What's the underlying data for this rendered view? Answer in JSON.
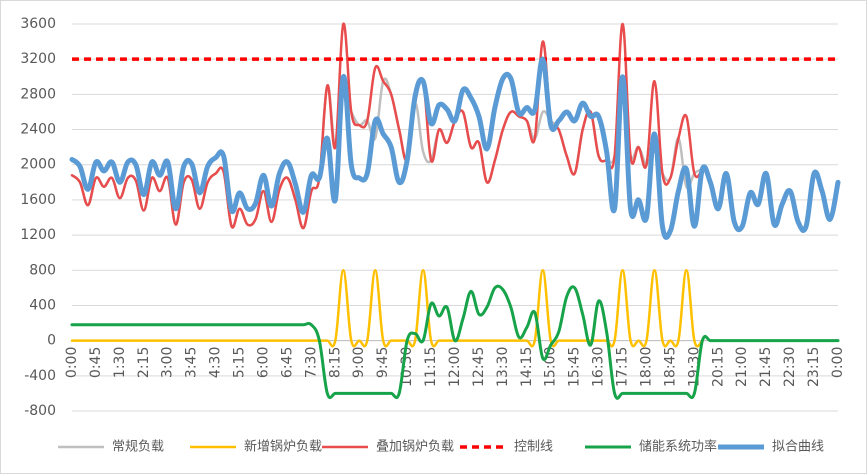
{
  "chart_data": {
    "type": "line",
    "categories": [
      "0:00",
      null,
      null,
      "0:45",
      null,
      null,
      "1:30",
      null,
      null,
      "2:15",
      null,
      null,
      "3:00",
      null,
      null,
      "3:45",
      null,
      null,
      "4:30",
      null,
      null,
      "5:15",
      null,
      null,
      "6:00",
      null,
      null,
      "6:45",
      null,
      null,
      "7:30",
      null,
      null,
      "8:15",
      null,
      null,
      "9:00",
      null,
      null,
      "9:45",
      null,
      null,
      "10:30",
      null,
      null,
      "11:15",
      null,
      null,
      "12:00",
      null,
      null,
      "12:45",
      null,
      null,
      "13:30",
      null,
      null,
      "14:15",
      null,
      null,
      "15:00",
      null,
      null,
      "15:45",
      null,
      null,
      "16:30",
      null,
      null,
      "17:15",
      null,
      null,
      "18:00",
      null,
      null,
      "18:45",
      null,
      null,
      "19:30",
      null,
      null,
      "20:15",
      null,
      null,
      "21:00",
      null,
      null,
      "21:45",
      null,
      null,
      "22:30",
      null,
      null,
      "23:15",
      null,
      null,
      "0:00"
    ],
    "ylim": [
      -800,
      3600
    ],
    "yticks": [
      -800,
      -400,
      0,
      400,
      800,
      1200,
      1600,
      2000,
      2400,
      2800,
      3200,
      3600
    ],
    "grid": true,
    "legend": "bottom",
    "series": [
      {
        "name": "常规负载",
        "color": "#bfbfbf",
        "values": [
          1880,
          1800,
          1540,
          1850,
          1750,
          1850,
          1620,
          1850,
          1820,
          1480,
          1850,
          1700,
          1850,
          1320,
          1800,
          1830,
          1500,
          1800,
          1900,
          1920,
          1300,
          1500,
          1320,
          1380,
          1700,
          1350,
          1720,
          1850,
          1600,
          1280,
          1700,
          1850,
          2900,
          2200,
          2800,
          2600,
          2450,
          2500,
          2300,
          2950,
          2800,
          2400,
          2050,
          2700,
          2150,
          2050,
          2400,
          2250,
          2500,
          2600,
          2200,
          2250,
          1800,
          2050,
          2400,
          2600,
          2550,
          2500,
          2300,
          2600,
          2500,
          2400,
          2100,
          1900,
          2400,
          2600,
          2100,
          2050,
          2100,
          2800,
          2100,
          2200,
          2000,
          2150,
          1900,
          1850,
          2300,
          1750,
          1900,
          1950,
          null,
          null,
          null,
          null,
          null,
          null,
          null,
          null,
          null,
          null,
          null,
          null,
          null,
          null,
          null,
          null,
          null
        ]
      },
      {
        "name": "新增锅炉负载",
        "color": "#ffc000",
        "values": [
          0,
          0,
          0,
          0,
          0,
          0,
          0,
          0,
          0,
          0,
          0,
          0,
          0,
          0,
          0,
          0,
          0,
          0,
          0,
          0,
          0,
          0,
          0,
          0,
          0,
          0,
          0,
          0,
          0,
          0,
          0,
          0,
          0,
          0,
          800,
          0,
          0,
          0,
          800,
          0,
          0,
          0,
          0,
          0,
          800,
          0,
          0,
          0,
          0,
          0,
          0,
          0,
          0,
          0,
          0,
          0,
          0,
          0,
          0,
          800,
          0,
          0,
          0,
          0,
          0,
          0,
          0,
          0,
          0,
          800,
          0,
          0,
          0,
          800,
          0,
          0,
          0,
          800,
          0,
          0,
          null,
          null,
          null,
          null,
          null,
          null,
          null,
          null,
          null,
          null,
          null,
          null,
          null,
          null,
          null,
          null,
          null
        ]
      },
      {
        "name": "叠加锅炉负载",
        "color": "#e84c4c",
        "values": [
          1880,
          1800,
          1540,
          1850,
          1750,
          1850,
          1620,
          1850,
          1820,
          1480,
          1850,
          1700,
          1850,
          1320,
          1800,
          1830,
          1500,
          1800,
          1900,
          1920,
          1300,
          1500,
          1320,
          1380,
          1700,
          1350,
          1720,
          1850,
          1600,
          1280,
          1700,
          1850,
          2900,
          2200,
          3600,
          2600,
          2450,
          2500,
          3100,
          2950,
          2800,
          2400,
          2050,
          2700,
          2950,
          2050,
          2400,
          2250,
          2500,
          2600,
          2200,
          2250,
          1800,
          2050,
          2400,
          2600,
          2550,
          2500,
          2300,
          3400,
          2500,
          2400,
          2100,
          1900,
          2400,
          2600,
          2100,
          2050,
          2100,
          3600,
          2100,
          2200,
          2000,
          2950,
          1900,
          1850,
          2300,
          2550,
          1900,
          1950,
          null,
          null,
          null,
          null,
          null,
          null,
          null,
          null,
          null,
          null,
          null,
          null,
          null,
          null,
          null,
          null,
          null
        ]
      },
      {
        "name": "控制线",
        "color": "#ff0000",
        "style": "dashed",
        "values": [
          3200,
          3200,
          3200,
          3200,
          3200,
          3200,
          3200,
          3200,
          3200,
          3200,
          3200,
          3200,
          3200,
          3200,
          3200,
          3200,
          3200,
          3200,
          3200,
          3200,
          3200,
          3200,
          3200,
          3200,
          3200,
          3200,
          3200,
          3200,
          3200,
          3200,
          3200,
          3200,
          3200,
          3200,
          3200,
          3200,
          3200,
          3200,
          3200,
          3200,
          3200,
          3200,
          3200,
          3200,
          3200,
          3200,
          3200,
          3200,
          3200,
          3200,
          3200,
          3200,
          3200,
          3200,
          3200,
          3200,
          3200,
          3200,
          3200,
          3200,
          3200,
          3200,
          3200,
          3200,
          3200,
          3200,
          3200,
          3200,
          3200,
          3200,
          3200,
          3200,
          3200,
          3200,
          3200,
          3200,
          3200,
          3200,
          3200,
          3200,
          3200,
          3200,
          3200,
          3200,
          3200,
          3200,
          3200,
          3200,
          3200,
          3200,
          3200,
          3200,
          3200,
          3200,
          3200,
          3200,
          3200
        ]
      },
      {
        "name": "储能系统功率",
        "color": "#16a34a",
        "values": [
          180,
          180,
          180,
          180,
          180,
          180,
          180,
          180,
          180,
          180,
          180,
          180,
          180,
          180,
          180,
          180,
          180,
          180,
          180,
          180,
          180,
          180,
          180,
          180,
          180,
          180,
          180,
          180,
          180,
          180,
          180,
          0,
          -600,
          -600,
          -600,
          -600,
          -600,
          -600,
          -600,
          -600,
          -600,
          -600,
          0,
          80,
          0,
          420,
          280,
          380,
          0,
          250,
          560,
          300,
          380,
          600,
          580,
          380,
          40,
          150,
          320,
          -200,
          -50,
          100,
          500,
          600,
          300,
          -50,
          450,
          100,
          -600,
          -600,
          -600,
          -600,
          -600,
          -600,
          -600,
          -600,
          -600,
          -600,
          -600,
          0,
          0,
          0,
          0,
          0,
          0,
          0,
          0,
          0,
          0,
          0,
          0,
          0,
          0,
          0,
          0,
          0,
          0
        ]
      },
      {
        "name": "拟合曲线",
        "color": "#5b9bd5",
        "values": [
          2060,
          1980,
          1720,
          2030,
          1930,
          2030,
          1800,
          2030,
          2000,
          1660,
          2030,
          1880,
          2030,
          1500,
          1980,
          2010,
          1680,
          1980,
          2080,
          2100,
          1480,
          1680,
          1500,
          1560,
          1880,
          1530,
          1900,
          2030,
          1780,
          1460,
          1880,
          1850,
          2300,
          1600,
          3000,
          2000,
          1850,
          1900,
          2500,
          2350,
          2200,
          1800,
          2050,
          2780,
          2950,
          2470,
          2680,
          2630,
          2500,
          2850,
          2760,
          2550,
          2180,
          2650,
          2980,
          2980,
          2590,
          2650,
          2620,
          3200,
          2450,
          2500,
          2600,
          2500,
          2700,
          2550,
          2550,
          2150,
          1500,
          3000,
          1500,
          1600,
          1400,
          2350,
          1300,
          1250,
          1700,
          1950,
          1300,
          1950,
          1800,
          1500,
          1900,
          1350,
          1300,
          1680,
          1550,
          1900,
          1320,
          1550,
          1700,
          1350,
          1300,
          1900,
          1700,
          1380,
          1800
        ]
      }
    ]
  }
}
